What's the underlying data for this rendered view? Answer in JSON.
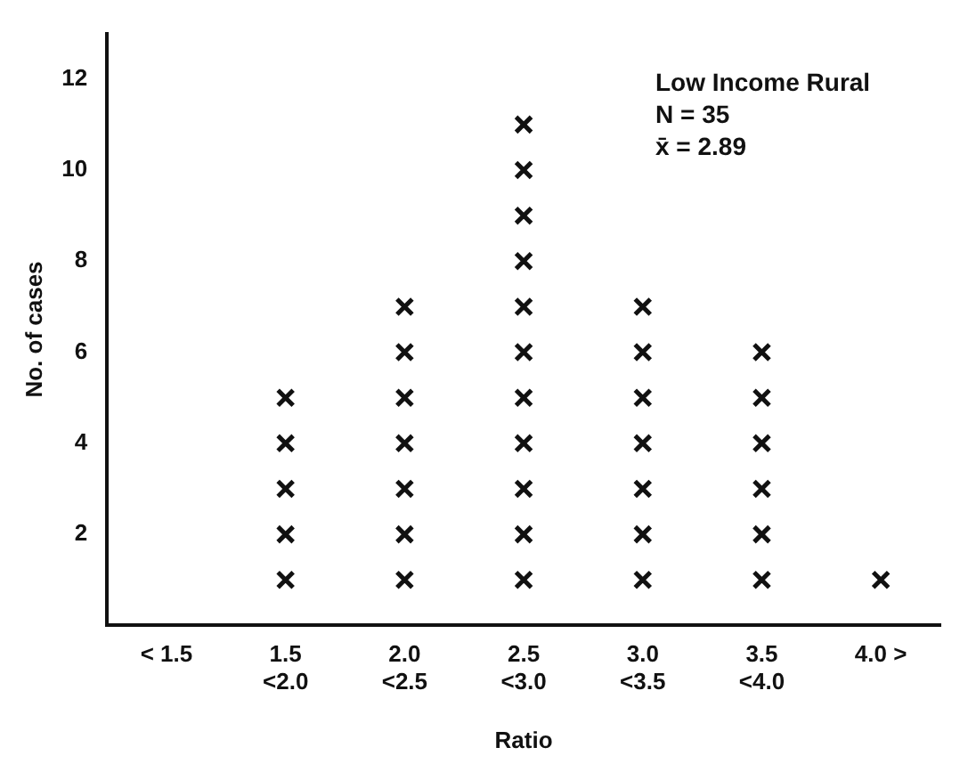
{
  "chart_data": {
    "type": "scatter",
    "xlabel": "Ratio",
    "ylabel": "No. of cases",
    "categories": [
      "< 1.5",
      "1.5\n<2.0",
      "2.0\n<2.5",
      "2.5\n<3.0",
      "3.0\n<3.5",
      "3.5\n<4.0",
      "4.0 >"
    ],
    "series": [
      {
        "color": "#111111",
        "x": [
          "1.5\n<2.0",
          "1.5\n<2.0",
          "1.5\n<2.0",
          "1.5\n<2.0",
          "1.5\n<2.0",
          "2.0\n<2.5",
          "2.0\n<2.5",
          "2.0\n<2.5",
          "2.0\n<2.5",
          "2.0\n<2.5",
          "2.0\n<2.5",
          "2.0\n<2.5",
          "2.5\n<3.0",
          "2.5\n<3.0",
          "2.5\n<3.0",
          "2.5\n<3.0",
          "2.5\n<3.0",
          "2.5\n<3.0",
          "2.5\n<3.0",
          "2.5\n<3.0",
          "2.5\n<3.0",
          "2.5\n<3.0",
          "2.5\n<3.0",
          "3.0\n<3.5",
          "3.0\n<3.5",
          "3.0\n<3.5",
          "3.0\n<3.5",
          "3.0\n<3.5",
          "3.0\n<3.5",
          "3.0\n<3.5",
          "3.5\n<4.0",
          "3.5\n<4.0",
          "3.5\n<4.0",
          "3.5\n<4.0",
          "3.5\n<4.0",
          "3.5\n<4.0",
          "4.0 >"
        ],
        "values": [
          1,
          2,
          3,
          4,
          5,
          1,
          2,
          3,
          4,
          5,
          6,
          7,
          1,
          2,
          3,
          4,
          5,
          6,
          7,
          8,
          9,
          10,
          11,
          1,
          2,
          3,
          4,
          5,
          6,
          7,
          1,
          2,
          3,
          4,
          5,
          6,
          1
        ]
      }
    ],
    "ylim": [
      0,
      13
    ],
    "yticks": [
      2,
      4,
      6,
      8,
      10,
      12
    ],
    "marker": "cross",
    "grid": false,
    "legend": false,
    "annotations": [
      "Low Income Rural",
      "N = 35",
      "x̄ = 2.89"
    ]
  }
}
